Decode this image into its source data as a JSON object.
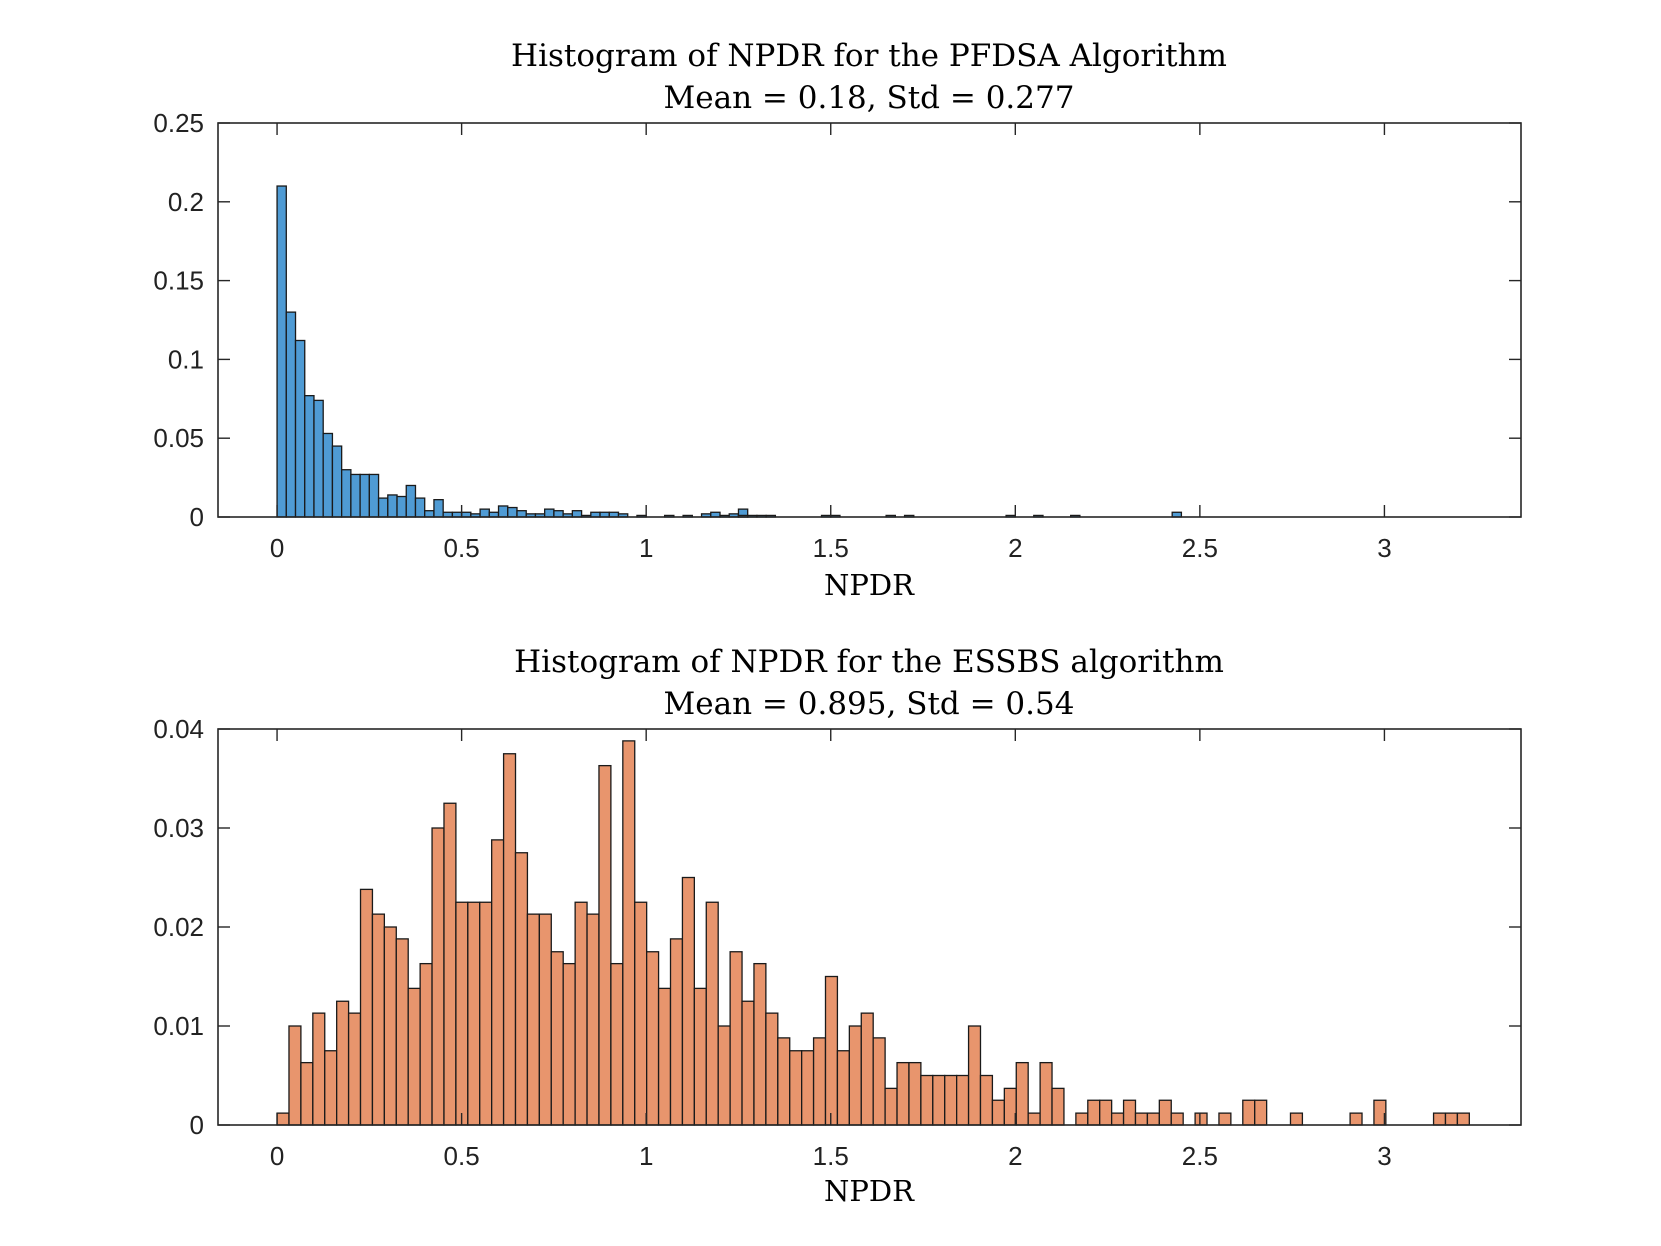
{
  "chart_data": [
    {
      "type": "histogram",
      "title": "Histogram of NPDR for the PFDSA Algorithm",
      "subtitle": "Mean = 0.18, Std = 0.277",
      "xlabel": "NPDR",
      "ylabel": "",
      "xlim": [
        -0.16,
        3.37
      ],
      "ylim": [
        0,
        0.25
      ],
      "xticks": [
        0,
        0.5,
        1,
        1.5,
        2,
        2.5,
        3
      ],
      "xtick_labels": [
        "0",
        "0.5",
        "1",
        "1.5",
        "2",
        "2.5",
        "3"
      ],
      "yticks": [
        0,
        0.05,
        0.1,
        0.15,
        0.2,
        0.25
      ],
      "ytick_labels": [
        "0",
        "0.05",
        "0.1",
        "0.15",
        "0.2",
        "0.25"
      ],
      "bar_color": "#4f9bd4",
      "bin_start": 0,
      "bin_width": 0.025,
      "values": [
        0.21,
        0.13,
        0.112,
        0.077,
        0.074,
        0.053,
        0.045,
        0.03,
        0.027,
        0.027,
        0.027,
        0.012,
        0.014,
        0.013,
        0.02,
        0.012,
        0.004,
        0.011,
        0.003,
        0.003,
        0.003,
        0.002,
        0.005,
        0.003,
        0.007,
        0.006,
        0.004,
        0.002,
        0.002,
        0.005,
        0.004,
        0.002,
        0.004,
        0.001,
        0.003,
        0.003,
        0.003,
        0.002,
        0.0,
        0.001,
        0.0,
        0.0,
        0.001,
        0.0,
        0.001,
        0.0,
        0.002,
        0.003,
        0.001,
        0.002,
        0.005,
        0.001,
        0.001,
        0.001,
        0.0,
        0.0,
        0.0,
        0.0,
        0.0,
        0.001,
        0.0,
        0.0,
        0.0,
        0.0,
        0.0,
        0.0,
        0.0,
        0.0,
        0.0,
        0.0,
        0.0,
        0.0,
        0.0,
        0.0,
        0.0,
        0.0,
        0.0,
        0.0,
        0.0,
        0.0,
        0.0,
        0.0,
        0.0,
        0.0,
        0.0,
        0.0,
        0.0,
        0.0,
        0.0,
        0.0,
        0.0,
        0.0,
        0.0,
        0.0,
        0.0,
        0.0,
        0.0,
        0.0,
        0.0,
        0.0,
        0.0,
        0.0,
        0.0,
        0.0,
        0.0,
        0.0,
        0.0,
        0.0,
        0.0,
        0.0,
        0.0,
        0.0,
        0.0,
        0.0,
        0.0,
        0.0,
        0.0,
        0.0,
        0.0,
        0.0,
        0.0,
        0.0,
        0.0,
        0.0,
        0.0,
        0.0,
        0.0,
        0.0,
        0.0,
        0.0,
        0.0,
        0.0,
        0.0,
        0.0,
        0.0,
        0.0,
        0.0,
        0.0,
        0.0,
        0.0,
        0.0,
        0.0,
        0.0,
        0.0,
        0.0,
        0.0,
        0.0,
        0.0,
        0.0,
        0.0,
        0.0,
        0.0,
        0.0,
        0.0,
        0.0,
        0.0,
        0.0,
        0.0,
        0.0,
        0.0,
        0.0,
        0.0,
        0.0,
        0.0,
        0.0,
        0.0,
        0.0,
        0.0,
        0.0,
        0.0,
        0.0,
        0.0,
        0.0,
        0.0,
        0.0,
        0.0,
        0.0,
        0.0,
        0.0,
        0.0,
        0.0,
        0.0,
        0.0,
        0.0,
        0.0,
        0.0,
        0.0,
        0.0,
        0.0,
        0.0,
        0.0,
        0.0,
        0.0,
        0.0,
        0.0,
        0.0,
        0.0,
        0.0,
        0.0,
        0.0,
        0.0,
        0.0,
        0.0,
        0.0,
        0.0,
        0.0,
        0.0,
        0.0,
        0.0,
        0.0,
        0.0,
        0.0,
        0.0,
        0.0,
        0.0,
        0.0,
        0.0,
        0.0,
        0.0,
        0.0,
        0.0,
        0.0,
        0.0,
        0.0,
        0.0,
        0.0,
        0.0,
        0.0,
        0.0,
        0.0,
        0.0,
        0.0,
        0.0,
        0.0,
        0.0,
        0.0,
        0.0,
        0.0,
        0.0,
        0.0,
        0.0,
        0.0,
        0.0,
        0.0,
        0.0,
        0.0,
        0.0,
        0.0,
        0.0,
        0.0,
        0.0,
        0.0,
        0.0,
        0.0,
        0.0,
        0.0,
        0.0,
        0.0,
        0.0,
        0.0,
        0.0,
        0.0,
        0.0,
        0.0,
        0.0,
        0.0,
        0.0,
        0.0,
        0.0,
        0.0,
        0.0,
        0.0,
        0.0,
        0.0,
        0.0,
        0.0,
        0.0,
        0.0,
        0.0,
        0.0,
        0.0,
        0.0,
        0.0,
        0.0,
        0.0,
        0.0,
        0.0,
        0.0,
        0.0,
        0.0,
        0.0,
        0.0,
        0.0,
        0.0,
        0.0,
        0.0,
        0.0,
        0.0,
        0.0,
        0.0,
        0.0,
        0.0,
        0.0,
        0.0,
        0.0,
        0.0,
        0.0,
        0.0,
        0.0,
        0.0,
        0.0,
        0.0,
        0.0,
        0.0,
        0.0,
        0.0,
        0.0,
        0.0,
        0.0,
        0.0,
        0.0,
        0.0,
        0.0,
        0.0,
        0.0,
        0.0,
        0.0,
        0.0,
        0.0,
        0.0,
        0.0,
        0.0,
        0.0,
        0.0,
        0.0,
        0.0,
        0.0,
        0.0,
        0.0,
        0.0,
        0.0,
        0.0,
        0.0,
        0.0,
        0.0,
        0.0,
        0.0,
        0.0,
        0.0,
        0.0,
        0.0,
        0.0,
        0.0,
        0.0,
        0.0,
        0.0,
        0.0,
        0.0,
        0.0,
        0.0,
        0.0,
        0.0,
        0.0,
        0.0,
        0.0,
        0.0,
        0.0,
        0.0,
        0.0,
        0.0,
        0.0,
        0.0,
        0.0,
        0.0,
        0.0,
        0.0,
        0.0,
        0.0,
        0.0,
        0.0,
        0.0,
        0.0,
        0.0,
        0.0,
        0.0,
        0.0,
        0.0,
        0.0,
        0.0,
        0.0,
        0.0,
        0.0,
        0.0,
        0.0,
        0.0,
        0.0,
        0.0,
        0.0,
        0.0,
        0.0,
        0.0,
        0.0,
        0.0,
        0.0,
        0.0,
        0.0,
        0.0,
        0.0,
        0.0,
        0.0,
        0.0,
        0.0,
        0.0,
        0.0,
        0.0,
        0.0,
        0.0,
        0.0,
        0.0,
        0.0,
        0.0,
        0.0,
        0.0,
        0.0,
        0.0,
        0.0,
        0.0,
        0.0,
        0.0,
        0.0,
        0.0,
        0.0,
        0.0,
        0.0,
        0.0,
        0.0,
        0.0,
        0.0,
        0.0,
        0.0,
        0.0,
        0.0,
        0.0,
        0.0,
        0.0,
        0.0,
        0.0,
        0.0,
        0.0,
        0.0,
        0.0,
        0.0,
        0.0,
        0.0,
        0.0,
        0.0,
        0.0,
        0.0,
        0.0,
        0.0,
        0.0,
        0.0,
        0.0,
        0.0,
        0.0,
        0.0,
        0.0,
        0.0,
        0.0,
        0.0,
        0.0,
        0.0,
        0.0,
        0.0,
        0.0
      ],
      "outlier_bins": [
        {
          "x": 1.25,
          "value": 0.001
        },
        {
          "x": 1.5,
          "value": 0.001
        },
        {
          "x": 1.65,
          "value": 0.001
        },
        {
          "x": 1.7,
          "value": 0.001
        },
        {
          "x": 1.975,
          "value": 0.001
        },
        {
          "x": 2.05,
          "value": 0.001
        },
        {
          "x": 2.15,
          "value": 0.001
        },
        {
          "x": 2.425,
          "value": 0.003
        }
      ]
    },
    {
      "type": "histogram",
      "title": "Histogram of NPDR for the ESSBS algorithm",
      "subtitle": "Mean = 0.895, Std = 0.54",
      "xlabel": "NPDR",
      "ylabel": "",
      "xlim": [
        -0.16,
        3.37
      ],
      "ylim": [
        0,
        0.04
      ],
      "xticks": [
        0,
        0.5,
        1,
        1.5,
        2,
        2.5,
        3
      ],
      "xtick_labels": [
        "0",
        "0.5",
        "1",
        "1.5",
        "2",
        "2.5",
        "3"
      ],
      "yticks": [
        0,
        0.01,
        0.02,
        0.03,
        0.04
      ],
      "ytick_labels": [
        "0",
        "0.01",
        "0.02",
        "0.03",
        "0.04"
      ],
      "bar_color": "#e8956d",
      "bin_start": 0,
      "bin_width": 0.0323,
      "values": [
        0.0012,
        0.01,
        0.0063,
        0.0113,
        0.0075,
        0.0125,
        0.0113,
        0.0238,
        0.0213,
        0.02,
        0.0188,
        0.0138,
        0.0163,
        0.03,
        0.0325,
        0.0225,
        0.0225,
        0.0225,
        0.0288,
        0.0375,
        0.0275,
        0.0213,
        0.0213,
        0.0175,
        0.0163,
        0.0225,
        0.0213,
        0.0363,
        0.0163,
        0.0388,
        0.0225,
        0.0175,
        0.0138,
        0.0188,
        0.025,
        0.0138,
        0.0225,
        0.01,
        0.0175,
        0.0125,
        0.0163,
        0.0113,
        0.0088,
        0.0075,
        0.0075,
        0.0088,
        0.015,
        0.0075,
        0.01,
        0.0113,
        0.0088,
        0.0037,
        0.0063,
        0.0063,
        0.005,
        0.005,
        0.005,
        0.005,
        0.01,
        0.005,
        0.0025,
        0.0037,
        0.0063,
        0.0012,
        0.0063,
        0.0037,
        0.0,
        0.0012,
        0.0025,
        0.0025,
        0.0012,
        0.0025,
        0.0012,
        0.0012,
        0.0025,
        0.0012,
        0.0,
        0.0012,
        0.0,
        0.0012,
        0.0,
        0.0025,
        0.0025,
        0.0,
        0.0,
        0.0012,
        0.0,
        0.0,
        0.0,
        0.0,
        0.0012,
        0.0,
        0.0025,
        0.0,
        0.0,
        0.0,
        0.0,
        0.0012,
        0.0012,
        0.0012
      ]
    }
  ]
}
